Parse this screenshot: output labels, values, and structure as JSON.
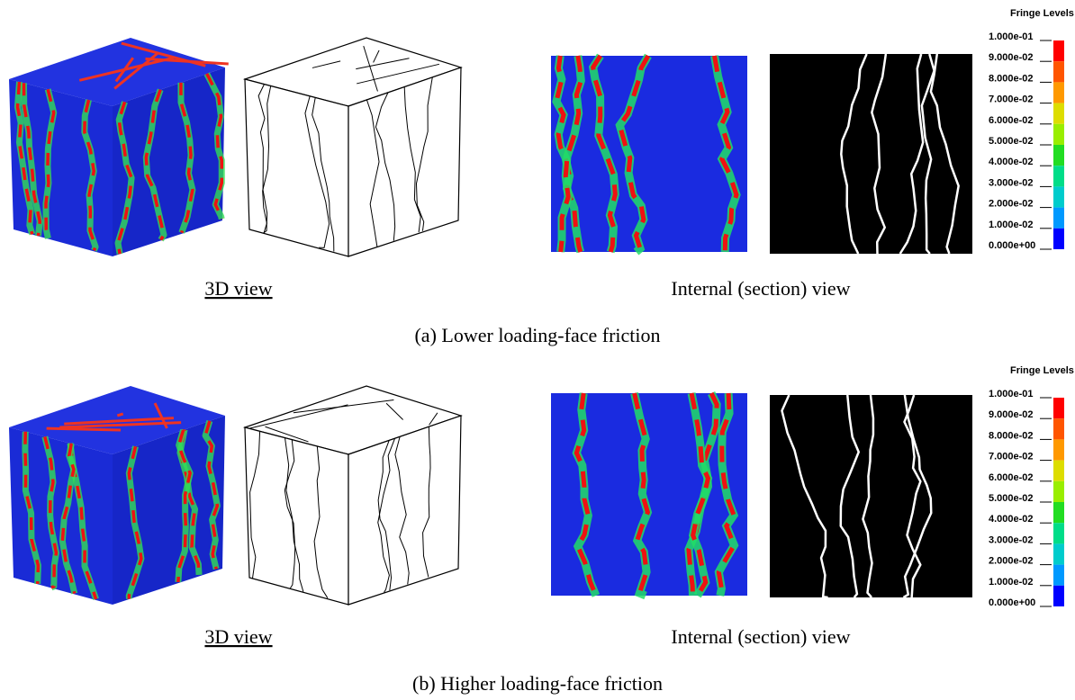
{
  "panels": [
    {
      "caption": "(a) Lower loading-face friction",
      "view_labels": [
        "3D view",
        "Internal (section) view"
      ],
      "legend": {
        "title": "Fringe Levels",
        "levels": [
          "1.000e-01",
          "9.000e-02",
          "8.000e-02",
          "7.000e-02",
          "6.000e-02",
          "5.000e-02",
          "4.000e-02",
          "3.000e-02",
          "2.000e-02",
          "1.000e-02",
          "0.000e+00"
        ]
      }
    },
    {
      "caption": "(b) Higher loading-face friction",
      "view_labels": [
        "3D view",
        "Internal (section) view"
      ],
      "legend": {
        "title": "Fringe Levels",
        "levels": [
          "1.000e-01",
          "9.000e-02",
          "8.000e-02",
          "7.000e-02",
          "6.000e-02",
          "5.000e-02",
          "4.000e-02",
          "3.000e-02",
          "2.000e-02",
          "1.000e-02",
          "0.000e+00"
        ]
      }
    }
  ]
}
